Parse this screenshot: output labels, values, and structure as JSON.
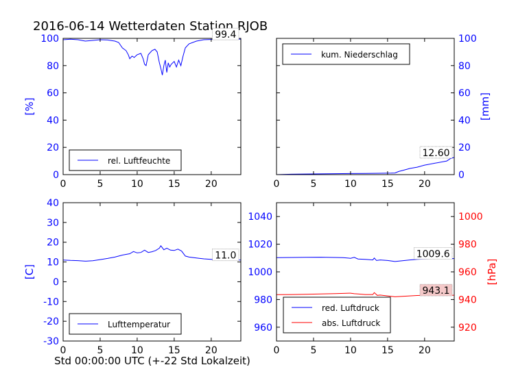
{
  "figure": {
    "title": "2016-06-14 Wetterdaten Station RJOB",
    "xlabel": "Std 00:00:00 UTC (+-22 Std Lokalzeit)"
  },
  "colors": {
    "blue": "#0000ff",
    "red": "#ff0000",
    "black": "#000000"
  },
  "chart_data": [
    {
      "id": "humidity",
      "type": "line",
      "ylabel": "[%]",
      "xlim": [
        0,
        24
      ],
      "ylim": [
        0,
        100
      ],
      "xticks": [
        0,
        5,
        10,
        15,
        20
      ],
      "yticks": [
        0,
        20,
        40,
        60,
        80,
        100
      ],
      "yaxis_side": "left",
      "annotation": "99.4",
      "legend_location": "lower-left",
      "series": [
        {
          "name": "rel. Luftfeuchte",
          "color": "#0000ff",
          "points": [
            [
              0,
              99
            ],
            [
              1,
              99.4
            ],
            [
              2,
              99
            ],
            [
              3,
              98
            ],
            [
              4,
              98.5
            ],
            [
              5,
              99
            ],
            [
              6,
              98.8
            ],
            [
              7,
              98
            ],
            [
              7.5,
              97
            ],
            [
              8,
              93
            ],
            [
              8.5,
              91
            ],
            [
              8.8,
              88
            ],
            [
              9,
              85
            ],
            [
              9.3,
              87
            ],
            [
              9.6,
              86
            ],
            [
              10,
              88
            ],
            [
              10.5,
              89
            ],
            [
              10.8,
              85
            ],
            [
              11,
              81
            ],
            [
              11.2,
              80
            ],
            [
              11.5,
              88
            ],
            [
              12,
              91
            ],
            [
              12.4,
              92
            ],
            [
              12.7,
              90
            ],
            [
              13,
              82
            ],
            [
              13.2,
              78
            ],
            [
              13.4,
              73
            ],
            [
              13.6,
              80
            ],
            [
              13.8,
              84
            ],
            [
              14,
              75
            ],
            [
              14.2,
              82
            ],
            [
              14.4,
              79
            ],
            [
              14.6,
              81
            ],
            [
              15,
              83
            ],
            [
              15.3,
              79
            ],
            [
              15.6,
              84
            ],
            [
              15.9,
              80
            ],
            [
              16.2,
              87
            ],
            [
              16.5,
              93
            ],
            [
              17,
              96
            ],
            [
              18,
              98
            ],
            [
              19,
              99
            ],
            [
              20,
              99.2
            ],
            [
              21,
              99.4
            ],
            [
              22,
              99.4
            ],
            [
              23,
              99.4
            ],
            [
              24,
              99.4
            ]
          ]
        }
      ]
    },
    {
      "id": "precipitation",
      "type": "line",
      "ylabel": "[mm]",
      "xlim": [
        0,
        24
      ],
      "ylim": [
        0,
        100
      ],
      "xticks": [
        0,
        5,
        10,
        15,
        20
      ],
      "yticks": [
        0,
        20,
        40,
        60,
        80,
        100
      ],
      "yaxis_side": "right",
      "annotation": "12.60",
      "legend_location": "upper-left",
      "series": [
        {
          "name": "kum. Niederschlag",
          "color": "#0000ff",
          "points": [
            [
              0,
              0
            ],
            [
              2,
              0.3
            ],
            [
              5,
              0.5
            ],
            [
              8,
              0.7
            ],
            [
              10,
              0.8
            ],
            [
              12,
              0.9
            ],
            [
              14,
              1.0
            ],
            [
              15.5,
              1.1
            ],
            [
              16,
              1.2
            ],
            [
              16.5,
              2.3
            ],
            [
              17,
              3.0
            ],
            [
              18,
              4.5
            ],
            [
              19,
              5.5
            ],
            [
              20,
              7.0
            ],
            [
              21,
              8.0
            ],
            [
              22,
              9.0
            ],
            [
              23,
              10.0
            ],
            [
              23.5,
              11.8
            ],
            [
              24,
              12.6
            ]
          ]
        }
      ]
    },
    {
      "id": "temperature",
      "type": "line",
      "ylabel": "[C]",
      "xlim": [
        0,
        24
      ],
      "ylim": [
        -30,
        40
      ],
      "xticks": [
        0,
        5,
        10,
        15,
        20
      ],
      "yticks": [
        -30,
        -20,
        -10,
        0,
        10,
        20,
        30,
        40
      ],
      "yaxis_side": "left",
      "annotation": "11.0",
      "legend_location": "lower-left",
      "series": [
        {
          "name": "Lufttemperatur",
          "color": "#0000ff",
          "points": [
            [
              0,
              11
            ],
            [
              1,
              10.8
            ],
            [
              2,
              10.7
            ],
            [
              3,
              10.4
            ],
            [
              4,
              10.6
            ],
            [
              5,
              11.2
            ],
            [
              6,
              11.8
            ],
            [
              7,
              12.5
            ],
            [
              8,
              13.5
            ],
            [
              9,
              14.2
            ],
            [
              9.5,
              15.3
            ],
            [
              10,
              14.6
            ],
            [
              10.5,
              14.8
            ],
            [
              11,
              16.0
            ],
            [
              11.5,
              14.8
            ],
            [
              12,
              15.2
            ],
            [
              12.5,
              15.8
            ],
            [
              13,
              17.0
            ],
            [
              13.2,
              18.2
            ],
            [
              13.6,
              16.2
            ],
            [
              14,
              17.0
            ],
            [
              14.5,
              16.0
            ],
            [
              15,
              15.8
            ],
            [
              15.5,
              16.5
            ],
            [
              16,
              15.5
            ],
            [
              16.5,
              13.0
            ],
            [
              17,
              12.5
            ],
            [
              18,
              12.0
            ],
            [
              19,
              11.6
            ],
            [
              20,
              11.3
            ],
            [
              21,
              11.1
            ],
            [
              22,
              11.0
            ],
            [
              24,
              11.0
            ]
          ]
        }
      ]
    },
    {
      "id": "pressure",
      "type": "line",
      "ylabel_right": "[hPa]",
      "xlim": [
        0,
        24
      ],
      "ylim_left": [
        950,
        1050
      ],
      "ylim_right": [
        910,
        1010
      ],
      "xticks": [
        0,
        5,
        10,
        15,
        20
      ],
      "yticks_left": [
        960,
        980,
        1000,
        1020,
        1040
      ],
      "yticks_right": [
        920,
        940,
        960,
        980,
        1000
      ],
      "annotation_red_luftdruck": "1009.6",
      "annotation_abs_luftdruck": "943.1",
      "legend_location": "lower-left",
      "series": [
        {
          "name": "red. Luftdruck",
          "color": "#0000ff",
          "axis": "left",
          "points": [
            [
              0,
              1010.3
            ],
            [
              2,
              1010.4
            ],
            [
              4,
              1010.5
            ],
            [
              6,
              1010.6
            ],
            [
              8,
              1010.4
            ],
            [
              9,
              1010.3
            ],
            [
              10,
              1009.8
            ],
            [
              10.5,
              1010.5
            ],
            [
              11,
              1009.3
            ],
            [
              12,
              1009.0
            ],
            [
              13,
              1008.6
            ],
            [
              13.2,
              1010.0
            ],
            [
              13.5,
              1008.2
            ],
            [
              14,
              1008.6
            ],
            [
              15,
              1008.2
            ],
            [
              16,
              1007.5
            ],
            [
              17,
              1008.0
            ],
            [
              18,
              1008.6
            ],
            [
              19,
              1009.0
            ],
            [
              20,
              1009.3
            ],
            [
              22,
              1009.6
            ],
            [
              24,
              1009.6
            ]
          ]
        },
        {
          "name": "abs. Luftdruck",
          "color": "#ff0000",
          "axis": "right",
          "points": [
            [
              0,
              943.5
            ],
            [
              2,
              943.6
            ],
            [
              4,
              943.8
            ],
            [
              6,
              944.0
            ],
            [
              8,
              944.3
            ],
            [
              10,
              944.6
            ],
            [
              10.5,
              944.2
            ],
            [
              11,
              944.0
            ],
            [
              12,
              943.6
            ],
            [
              13,
              943.6
            ],
            [
              13.2,
              945.0
            ],
            [
              13.6,
              943.0
            ],
            [
              14,
              943.2
            ],
            [
              15,
              942.6
            ],
            [
              16,
              942.0
            ],
            [
              17,
              942.3
            ],
            [
              18,
              942.6
            ],
            [
              19,
              942.9
            ],
            [
              20,
              943.0
            ],
            [
              22,
              943.1
            ],
            [
              24,
              943.1
            ]
          ]
        }
      ]
    }
  ]
}
